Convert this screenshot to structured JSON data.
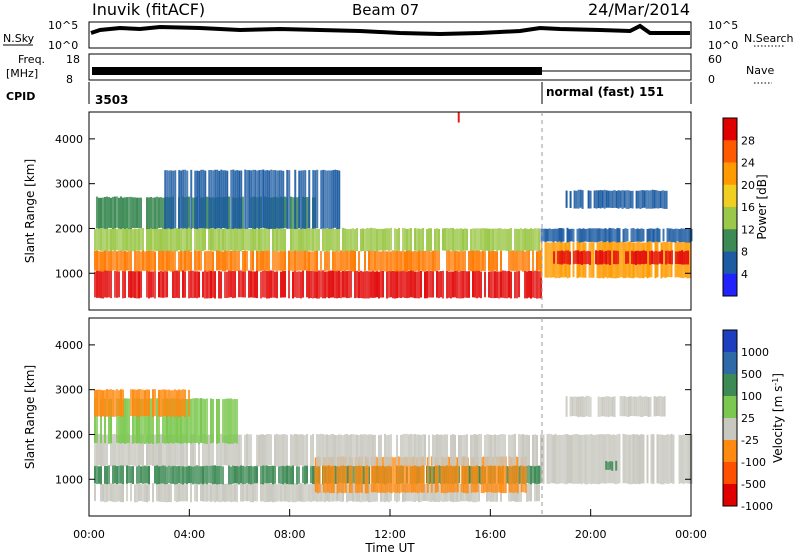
{
  "header": {
    "station": "Inuvik (fitACF)",
    "beam": "Beam 07",
    "date": "24/Mar/2014"
  },
  "strip_panels": {
    "nsky_label": "N.Sky",
    "nsearch_label": "N.Search",
    "nsky_ticks_left": [
      "10^5",
      "10^0"
    ],
    "nsky_ticks_right": [
      "10^5",
      "10^0"
    ],
    "freq_label_top": "Freq.",
    "freq_label_unit": "[MHz]",
    "freq_ticks_left": [
      "18",
      "8"
    ],
    "nave_ticks_right": [
      "60",
      "0"
    ],
    "nave_label": "Nave",
    "cpid_label": "CPID",
    "cpid_values": [
      {
        "value": "3503",
        "start_hour": 0
      },
      {
        "value": "normal (fast) 151",
        "start_hour": 18
      }
    ]
  },
  "chart_data": [
    {
      "type": "heatmap",
      "title": "Power",
      "ylabel": "Slant Range [km]",
      "xlabel": "",
      "x_range_hours": [
        0,
        24
      ],
      "ylim": [
        180,
        4600
      ],
      "y_ticks": [
        1000,
        2000,
        3000,
        4000
      ],
      "colorbar": {
        "label": "Power [dB]",
        "ticks": [
          "28",
          "24",
          "20",
          "16",
          "12",
          "8",
          "4"
        ],
        "colors": [
          "#e00000",
          "#ff5a00",
          "#ff9b00",
          "#f0cf20",
          "#9cc84a",
          "#3d8a55",
          "#1d5ca2",
          "#2222ff"
        ]
      },
      "bands": [
        {
          "x0": 0.2,
          "x1": 18,
          "y0": 450,
          "y1": 1050,
          "color": "#e30d0d"
        },
        {
          "x0": 0.2,
          "x1": 18,
          "y0": 1050,
          "y1": 1500,
          "color": "#ff7a00"
        },
        {
          "x0": 0.2,
          "x1": 18,
          "y0": 1500,
          "y1": 2000,
          "color": "#9cc84a"
        },
        {
          "x0": 0.2,
          "x1": 9,
          "y0": 2000,
          "y1": 2700,
          "color": "#3d8a55"
        },
        {
          "x0": 18,
          "x1": 24,
          "y0": 900,
          "y1": 1700,
          "color": "#ff9b00"
        },
        {
          "x0": 18.5,
          "x1": 24,
          "y0": 1200,
          "y1": 1500,
          "color": "#e30d0d"
        },
        {
          "x0": 18,
          "x1": 24,
          "y0": 1700,
          "y1": 2000,
          "color": "#1d5ca2"
        },
        {
          "x0": 19,
          "x1": 23,
          "y0": 2450,
          "y1": 2850,
          "color": "#1d5ca2"
        },
        {
          "x0": 3,
          "x1": 10,
          "y0": 2000,
          "y1": 3300,
          "color": "#1d5ca2"
        },
        {
          "x0": 14.7,
          "x1": 14.75,
          "y0": 4350,
          "y1": 4600,
          "color": "#e30d0d"
        }
      ]
    },
    {
      "type": "heatmap",
      "title": "Velocity",
      "ylabel": "Slant Range [km]",
      "xlabel": "Time UT",
      "x_range_hours": [
        0,
        24
      ],
      "ylim": [
        180,
        4600
      ],
      "y_ticks": [
        1000,
        2000,
        3000,
        4000
      ],
      "x_ticks": [
        "00:00",
        "04:00",
        "08:00",
        "12:00",
        "16:00",
        "20:00",
        "00:00"
      ],
      "colorbar": {
        "label": "Velocity [m s^-1]",
        "ticks": [
          "1000",
          "500",
          "100",
          "25",
          "-25",
          "-100",
          "-500",
          "-1000"
        ],
        "colors": [
          "#1d3fbf",
          "#2e6aa8",
          "#3d8a55",
          "#7bc850",
          "#c8c8c0",
          "#ff8a10",
          "#ff5000",
          "#e00000"
        ]
      },
      "bands": [
        {
          "x0": 0.2,
          "x1": 18,
          "y0": 500,
          "y1": 900,
          "color": "#c8c8c0"
        },
        {
          "x0": 0.2,
          "x1": 18,
          "y0": 900,
          "y1": 1300,
          "color": "#3d8a55"
        },
        {
          "x0": 9,
          "x1": 17.5,
          "y0": 700,
          "y1": 1500,
          "color": "#ff8a10"
        },
        {
          "x0": 0.2,
          "x1": 18,
          "y0": 1300,
          "y1": 2000,
          "color": "#c8c8c0"
        },
        {
          "x0": 0.2,
          "x1": 6,
          "y0": 1800,
          "y1": 2800,
          "color": "#7bc850"
        },
        {
          "x0": 0.2,
          "x1": 4,
          "y0": 2400,
          "y1": 3000,
          "color": "#ff8a10"
        },
        {
          "x0": 18,
          "x1": 24,
          "y0": 900,
          "y1": 2000,
          "color": "#c8c8c0"
        },
        {
          "x0": 19,
          "x1": 23,
          "y0": 2400,
          "y1": 2850,
          "color": "#c8c8c0"
        },
        {
          "x0": 20.5,
          "x1": 21,
          "y0": 1200,
          "y1": 1400,
          "color": "#3d8a55"
        }
      ]
    }
  ]
}
